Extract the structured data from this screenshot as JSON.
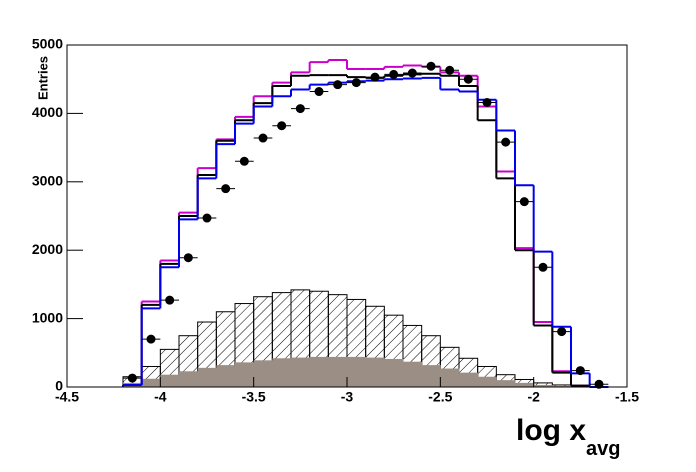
{
  "chart_data": {
    "type": "histogram",
    "x_label": "log x",
    "x_label_sub": "avg",
    "y_label": "Entries",
    "bins": [
      -4.2,
      -4.1,
      -4.0,
      -3.9,
      -3.8,
      -3.7,
      -3.6,
      -3.5,
      -3.4,
      -3.3,
      -3.2,
      -3.1,
      -3.0,
      -2.9,
      -2.8,
      -2.7,
      -2.6,
      -2.5,
      -2.4,
      -2.3,
      -2.2,
      -2.1,
      -2.0,
      -1.9,
      -1.8,
      -1.7,
      -1.6
    ],
    "xlim": [
      -4.5,
      -1.5
    ],
    "xticks": [
      -4.5,
      -4,
      -3.5,
      -3,
      -2.5,
      -2,
      -1.5
    ],
    "ylim": [
      0,
      5000
    ],
    "yticks": [
      0,
      1000,
      2000,
      3000,
      4000,
      5000
    ],
    "series": [
      {
        "style": "hatch",
        "color": "#000000",
        "values": [
          150,
          300,
          550,
          750,
          950,
          1100,
          1220,
          1320,
          1380,
          1420,
          1400,
          1350,
          1280,
          1180,
          1050,
          900,
          750,
          580,
          420,
          300,
          180,
          110,
          60,
          30,
          10,
          0
        ]
      },
      {
        "style": "fill",
        "color": "#9b8e84",
        "values": [
          60,
          120,
          180,
          230,
          280,
          320,
          360,
          390,
          420,
          430,
          440,
          440,
          440,
          430,
          410,
          370,
          320,
          270,
          210,
          150,
          100,
          60,
          30,
          15,
          5,
          0
        ]
      },
      {
        "style": "step",
        "color": "#cc00cc",
        "values": [
          30,
          1250,
          1850,
          2550,
          3200,
          3620,
          3950,
          4250,
          4450,
          4600,
          4750,
          4780,
          4650,
          4650,
          4680,
          4700,
          4680,
          4600,
          4550,
          4100,
          3150,
          2030,
          950,
          230,
          20,
          0
        ]
      },
      {
        "style": "step",
        "color": "#000000",
        "values": [
          30,
          1200,
          1800,
          2500,
          3100,
          3600,
          3900,
          4150,
          4400,
          4550,
          4560,
          4560,
          4530,
          4520,
          4550,
          4570,
          4580,
          4550,
          4400,
          3900,
          3050,
          2000,
          900,
          210,
          20,
          0
        ]
      },
      {
        "style": "step",
        "color": "#0000ee",
        "values": [
          30,
          1150,
          1750,
          2450,
          3050,
          3550,
          3850,
          4100,
          4250,
          4350,
          4420,
          4450,
          4470,
          4480,
          4500,
          4510,
          4520,
          4350,
          4320,
          4200,
          3750,
          2950,
          1980,
          880,
          200,
          0
        ]
      },
      {
        "style": "points",
        "color": "#000000",
        "values": [
          130,
          700,
          1270,
          1890,
          2470,
          2900,
          3300,
          3640,
          3820,
          4070,
          4320,
          4420,
          4450,
          4530,
          4570,
          4590,
          4690,
          4630,
          4500,
          4160,
          3580,
          2710,
          1750,
          810,
          240,
          40
        ]
      }
    ]
  }
}
